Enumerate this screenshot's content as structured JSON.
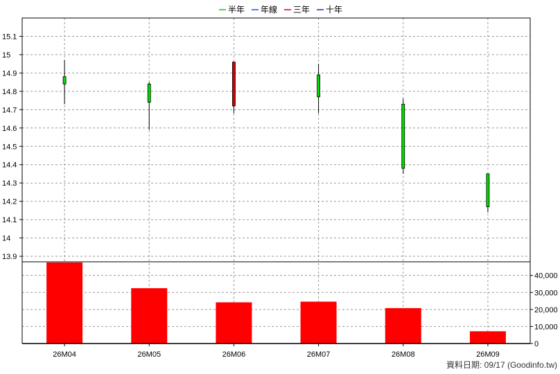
{
  "legend": [
    {
      "label": "半年",
      "color": "#00cc00"
    },
    {
      "label": "年線",
      "color": "#0055ff"
    },
    {
      "label": "三年",
      "color": "#dd0000"
    },
    {
      "label": "十年",
      "color": "#6600cc"
    }
  ],
  "footer": "資料日期: 09/17  (Goodinfo.tw)",
  "chart_data": {
    "type": "candlestick",
    "categories": [
      "26M04",
      "26M05",
      "26M06",
      "26M07",
      "26M08",
      "26M09"
    ],
    "price": {
      "ylim": [
        13.87,
        15.2
      ],
      "ticks": [
        "13.9",
        "14",
        "14.1",
        "14.2",
        "14.3",
        "14.4",
        "14.5",
        "14.6",
        "14.7",
        "14.8",
        "14.9",
        "15",
        "15.1"
      ],
      "candles": [
        {
          "open": 14.84,
          "close": 14.88,
          "high": 14.97,
          "low": 14.73,
          "color": "#00dd00"
        },
        {
          "open": 14.74,
          "close": 14.84,
          "high": 14.85,
          "low": 14.59,
          "color": "#00dd00"
        },
        {
          "open": 14.72,
          "close": 14.96,
          "high": 14.96,
          "low": 14.68,
          "color": "#cc0000"
        },
        {
          "open": 14.77,
          "close": 14.89,
          "high": 14.95,
          "low": 14.68,
          "color": "#00dd00"
        },
        {
          "open": 14.38,
          "close": 14.73,
          "high": 14.76,
          "low": 14.35,
          "color": "#00dd00"
        },
        {
          "open": 14.17,
          "close": 14.35,
          "high": 14.35,
          "low": 14.14,
          "color": "#00dd00"
        }
      ]
    },
    "volume": {
      "ylim": [
        0,
        48000
      ],
      "ticks": [
        "0",
        "10,000",
        "20,000",
        "30,000",
        "40,000"
      ],
      "tick_values": [
        0,
        10000,
        20000,
        30000,
        40000
      ],
      "values": [
        48500,
        32500,
        24200,
        24600,
        20800,
        7200
      ],
      "color": "#ff0000"
    }
  }
}
